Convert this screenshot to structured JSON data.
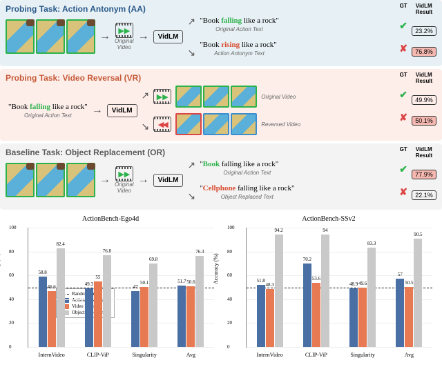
{
  "panels": {
    "aa": {
      "title": "Probing Task: Action Antonym (AA)",
      "video_caption": "Original\nVideo",
      "out1": {
        "text_pre": "\"Book ",
        "kw": "falling",
        "text_post": " like a rock\"",
        "sub": "Original Action Text",
        "gt": "✔",
        "val": "23.2%",
        "hl": false
      },
      "out2": {
        "text_pre": "\"Book ",
        "kw": "rising",
        "text_post": " like a rock\"",
        "sub": "Action Antonym Text",
        "gt": "✘",
        "val": "76.8%",
        "hl": true
      }
    },
    "vr": {
      "title": "Probing Task: Video Reversal (VR)",
      "text_in": {
        "pre": "\"Book ",
        "kw": "falling",
        "post": " like a rock\"",
        "sub": "Original Action Text"
      },
      "out1": {
        "sub": "Original Video",
        "gt": "✔",
        "val": "49.9%",
        "hl": false
      },
      "out2": {
        "sub": "Reversed Video",
        "gt": "✘",
        "val": "50.1%",
        "hl": true
      }
    },
    "or": {
      "title": "Baseline Task: Object Replacement (OR)",
      "video_caption": "Original\nVideo",
      "out1": {
        "pre": "\"",
        "kw": "Book",
        "post": " falling like a rock\"",
        "sub": "Original Action Text",
        "gt": "✔",
        "val": "77.9%",
        "hl": true
      },
      "out2": {
        "pre": "\"",
        "kw": "Cellphone",
        "post": " falling like a rock\"",
        "sub": "Object Replaced Text",
        "gt": "✘",
        "val": "22.1%",
        "hl": false
      }
    },
    "headers": {
      "gt": "GT",
      "res": "VidLM\nResult"
    },
    "vidlm": "VidLM"
  },
  "charts": {
    "colors": {
      "aa": "#4a6fa5",
      "vr": "#e77a53",
      "or": "#c9c9c9",
      "rand": "#111111",
      "grid": "#eeeeee"
    },
    "ylim": [
      0,
      100
    ],
    "ytick_step": 20,
    "ylabel": "Accuracy (%)",
    "legend": [
      "Random Guess",
      "Action Antonym",
      "Video Reversal",
      "Object Replacement"
    ],
    "left": {
      "title": "ActionBench-Ego4d",
      "categories": [
        "InternVideo",
        "CLIP-ViP",
        "Singularity",
        "Avg"
      ],
      "series": {
        "aa": [
          58.8,
          49.3,
          47.0,
          51.7
        ],
        "vr": [
          46.6,
          55.0,
          50.1,
          50.6
        ],
        "or": [
          82.4,
          76.8,
          69.8,
          76.3
        ]
      }
    },
    "right": {
      "title": "ActionBench-SSv2",
      "categories": [
        "InternVideo",
        "CLIP-ViP",
        "Singularity",
        "Avg"
      ],
      "series": {
        "aa": [
          51.8,
          70.2,
          48.9,
          57.0
        ],
        "vr": [
          48.3,
          53.6,
          49.6,
          50.5
        ],
        "or": [
          94.2,
          94.0,
          83.3,
          90.5
        ]
      }
    }
  }
}
